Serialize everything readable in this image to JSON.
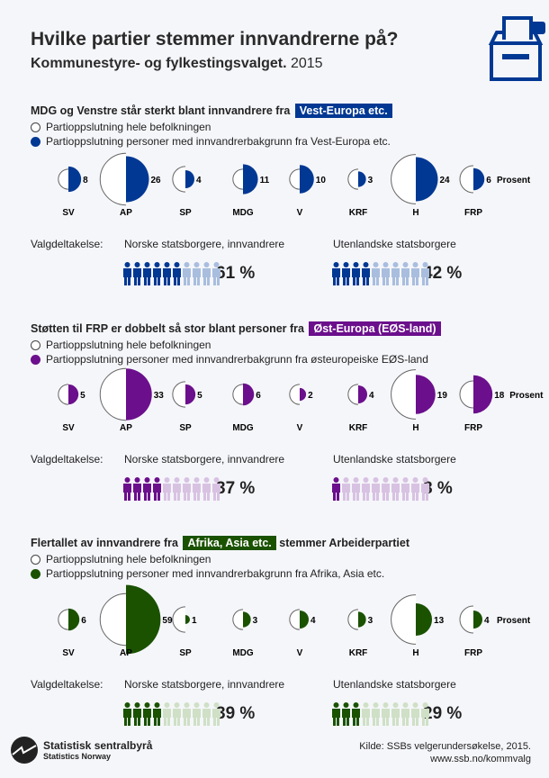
{
  "title": "Hvilke partier stemmer innvandrerne på?",
  "subtitle_bold": "Kommunestyre- og fylkestingsvalget.",
  "subtitle_year": "2015",
  "legend_all": "Partioppslutning hele befolkningen",
  "unit_label": "Prosent",
  "turnout_label": "Valgdeltakelse:",
  "turnout_cols": [
    "Norske statsborgere, innvandrere",
    "Utenlandske statsborgere"
  ],
  "chart_data": [
    {
      "type": "semicircle-comparison",
      "title": "MDG og Venstre står sterkt blant innvandrere fra",
      "tag": "Vest-Europa etc.",
      "color": "#003893",
      "legend": "Partioppslutning personer med innvandrerbakgrunn fra Vest-Europa etc.",
      "categories": [
        "SV",
        "AP",
        "SP",
        "MDG",
        "V",
        "KRF",
        "H",
        "FRP"
      ],
      "values": [
        8,
        26,
        4,
        11,
        10,
        3,
        24,
        6
      ],
      "population_values_approx": [
        5,
        33,
        8,
        5,
        5,
        5,
        30,
        9
      ],
      "turnout": [
        61,
        42
      ],
      "turnout_labels": [
        "61 %",
        "42 %"
      ]
    },
    {
      "type": "semicircle-comparison",
      "title": "Støtten til FRP er dobbelt så stor blant personer fra",
      "tag": "Øst-Europa (EØS-land)",
      "color": "#6b0f8c",
      "legend": "Partioppslutning personer med innvandrerbakgrunn fra østeuropeiske EØS-land",
      "categories": [
        "SV",
        "AP",
        "SP",
        "MDG",
        "V",
        "KRF",
        "H",
        "FRP"
      ],
      "values": [
        5,
        33,
        5,
        6,
        2,
        4,
        19,
        18
      ],
      "population_values_approx": [
        5,
        33,
        8,
        5,
        5,
        5,
        30,
        9
      ],
      "turnout": [
        37,
        8
      ],
      "turnout_labels": [
        "37 %",
        "8 %"
      ]
    },
    {
      "type": "semicircle-comparison",
      "title": "Flertallet av innvandrere fra",
      "tag": "Afrika, Asia etc.",
      "title_after": "stemmer Arbeiderpartiet",
      "color": "#1a5200",
      "legend": "Partioppslutning personer med innvandrerbakgrunn fra Afrika, Asia etc.",
      "categories": [
        "SV",
        "AP",
        "SP",
        "MDG",
        "V",
        "KRF",
        "H",
        "FRP"
      ],
      "values": [
        6,
        59,
        1,
        3,
        4,
        3,
        13,
        4
      ],
      "population_values_approx": [
        5,
        33,
        8,
        5,
        5,
        5,
        30,
        9
      ],
      "turnout": [
        39,
        29
      ],
      "turnout_labels": [
        "39 %",
        "29 %"
      ]
    }
  ],
  "footer": {
    "logo_name": "Statistisk sentralbyrå",
    "logo_sub": "Statistics Norway",
    "source": "Kilde: SSBs velgerundersøkelse, 2015.",
    "url": "www.ssb.no/kommvalg"
  }
}
